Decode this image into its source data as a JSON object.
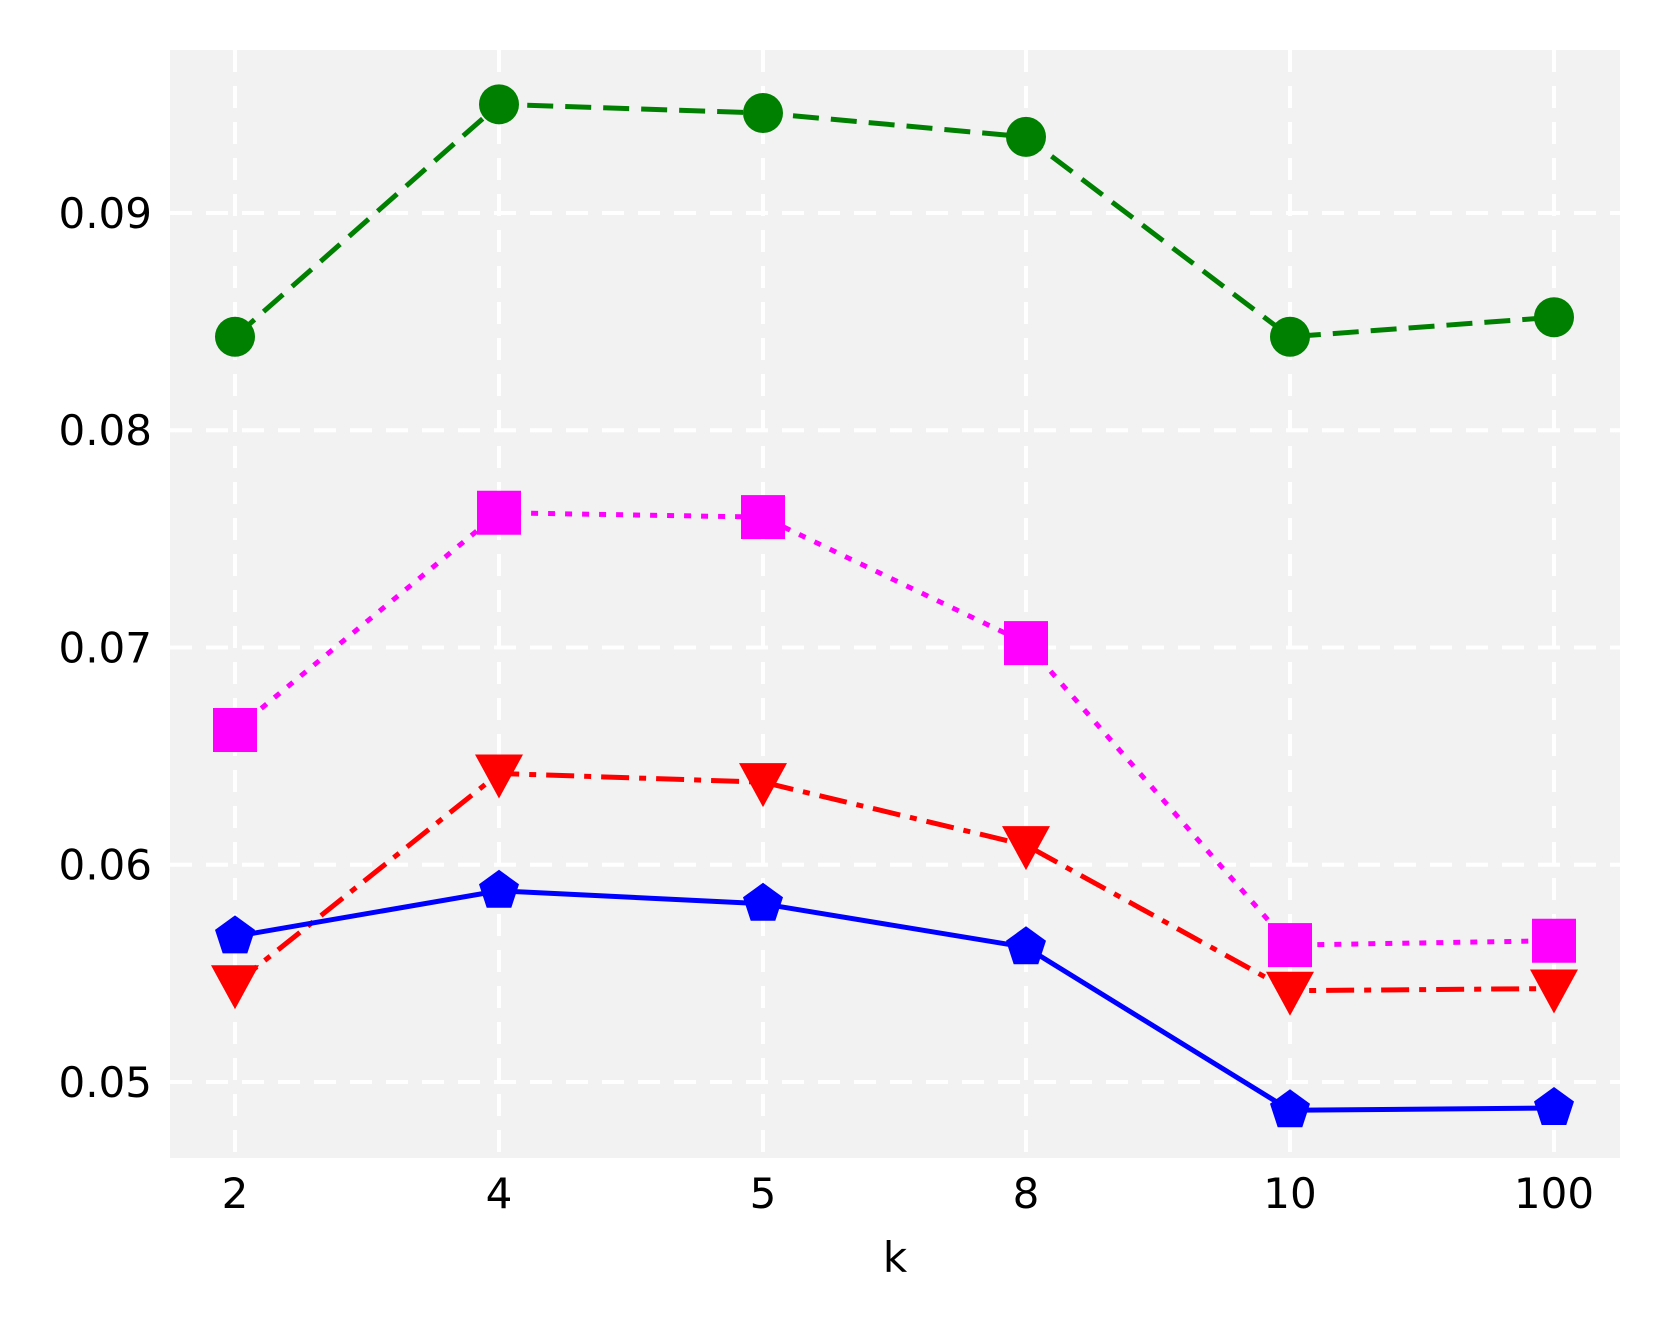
{
  "chart_data": {
    "type": "line",
    "xlabel": "k",
    "ylabel": "",
    "categories": [
      "2",
      "4",
      "5",
      "8",
      "10",
      "100"
    ],
    "ylim": [
      0.0465,
      0.0975
    ],
    "yticks": [
      0.05,
      0.06,
      0.07,
      0.08,
      0.09
    ],
    "ytick_labels": [
      "0.05",
      "0.06",
      "0.07",
      "0.08",
      "0.09"
    ],
    "grid": true,
    "background": "#f2f2f2",
    "series": [
      {
        "values": [
          0.0843,
          0.095,
          0.0946,
          0.0935,
          0.0843,
          0.0852
        ],
        "color": "#008000",
        "linestyle": "dashed",
        "marker": "circle"
      },
      {
        "values": [
          0.0662,
          0.0762,
          0.076,
          0.0702,
          0.0563,
          0.0565
        ],
        "color": "#ff00ff",
        "linestyle": "dotted",
        "marker": "square"
      },
      {
        "values": [
          0.0545,
          0.0642,
          0.0638,
          0.0609,
          0.0542,
          0.0543
        ],
        "color": "#ff0000",
        "linestyle": "dashdot",
        "marker": "triangle-down"
      },
      {
        "values": [
          0.0567,
          0.0588,
          0.0582,
          0.0562,
          0.0487,
          0.0488
        ],
        "color": "#0000ff",
        "linestyle": "solid",
        "marker": "pentagon"
      }
    ]
  }
}
